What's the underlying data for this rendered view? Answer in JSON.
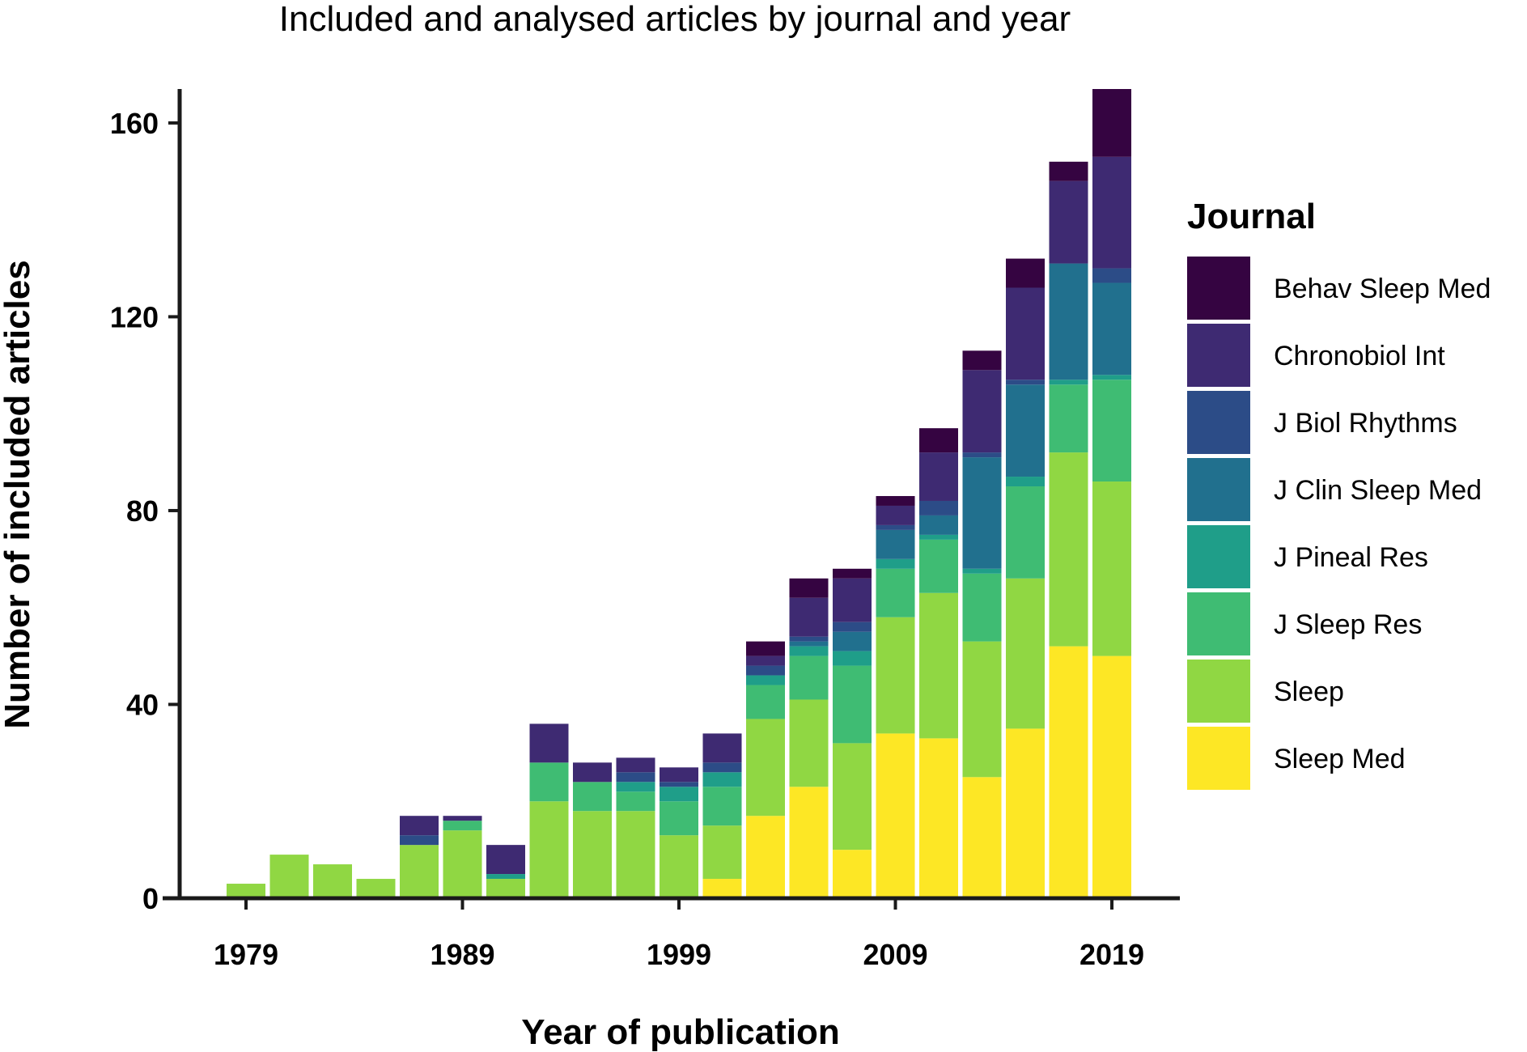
{
  "chart_data": {
    "type": "bar",
    "stacked": true,
    "title": "Included and analysed articles by journal and year",
    "xlabel": "Year of publication",
    "ylabel": "Number of included articles",
    "x_ticks": [
      "1979",
      "1989",
      "1999",
      "2009",
      "2019"
    ],
    "y_ticks": [
      "0",
      "40",
      "80",
      "120",
      "160"
    ],
    "ylim": [
      0,
      167
    ],
    "grid": false,
    "legend": {
      "title": "Journal",
      "position": "right"
    },
    "categories": [
      "1979",
      "1981",
      "1983",
      "1985",
      "1987",
      "1989",
      "1991",
      "1993",
      "1995",
      "1997",
      "1999",
      "2001",
      "2003",
      "2005",
      "2007",
      "2009",
      "2011",
      "2013",
      "2015",
      "2017",
      "2019"
    ],
    "series": [
      {
        "name": "Sleep Med",
        "color": "#fde725",
        "values": [
          0,
          0,
          0,
          0,
          0,
          0,
          0,
          0,
          0,
          0,
          0,
          4,
          17,
          23,
          10,
          34,
          33,
          25,
          35,
          52,
          50
        ]
      },
      {
        "name": "Sleep",
        "color": "#90d743",
        "values": [
          3,
          9,
          7,
          4,
          11,
          14,
          4,
          20,
          18,
          18,
          13,
          11,
          20,
          18,
          22,
          24,
          30,
          28,
          31,
          40,
          36
        ]
      },
      {
        "name": "J Sleep Res",
        "color": "#3fbc73",
        "values": [
          0,
          0,
          0,
          0,
          0,
          2,
          0,
          8,
          6,
          4,
          7,
          8,
          7,
          9,
          16,
          10,
          11,
          14,
          19,
          14,
          21
        ]
      },
      {
        "name": "J Pineal Res",
        "color": "#1f9e89",
        "values": [
          0,
          0,
          0,
          0,
          0,
          0,
          1,
          0,
          0,
          2,
          3,
          3,
          2,
          2,
          3,
          2,
          1,
          1,
          2,
          1,
          1
        ]
      },
      {
        "name": "J Clin Sleep Med",
        "color": "#21708e",
        "values": [
          0,
          0,
          0,
          0,
          0,
          0,
          0,
          0,
          0,
          0,
          0,
          0,
          0,
          1,
          4,
          6,
          4,
          23,
          19,
          24,
          19
        ]
      },
      {
        "name": "J Biol Rhythms",
        "color": "#2c4c87",
        "values": [
          0,
          0,
          0,
          0,
          2,
          0,
          0,
          0,
          0,
          2,
          1,
          2,
          2,
          1,
          2,
          1,
          3,
          1,
          1,
          0,
          3
        ]
      },
      {
        "name": "Chronobiol Int",
        "color": "#3e2a72",
        "values": [
          0,
          0,
          0,
          0,
          4,
          1,
          6,
          8,
          4,
          3,
          3,
          6,
          2,
          8,
          9,
          4,
          10,
          17,
          19,
          17,
          23
        ]
      },
      {
        "name": "Behav Sleep Med",
        "color": "#350441",
        "values": [
          0,
          0,
          0,
          0,
          0,
          0,
          0,
          0,
          0,
          0,
          0,
          0,
          3,
          4,
          2,
          2,
          5,
          4,
          6,
          4,
          14
        ]
      }
    ]
  }
}
